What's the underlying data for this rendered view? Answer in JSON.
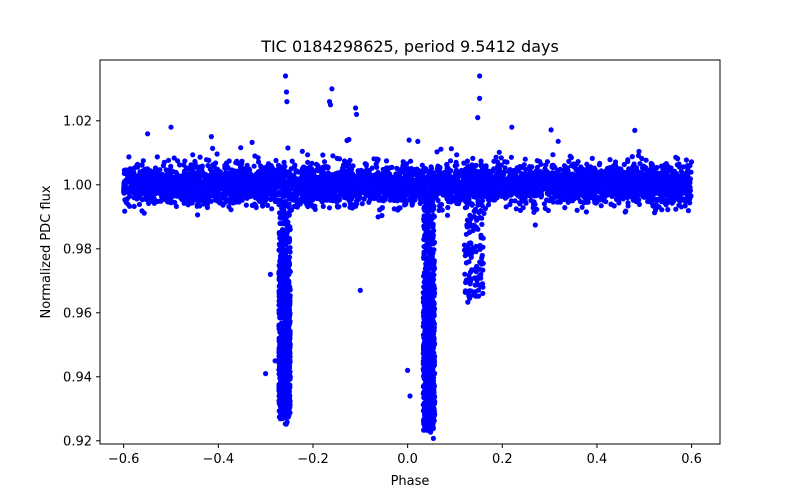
{
  "chart_data": {
    "type": "scatter",
    "title": "TIC 0184298625, period 9.5412 days",
    "xlabel": "Phase",
    "ylabel": "Normalized PDC flux",
    "xlim": [
      -0.65,
      0.66
    ],
    "ylim": [
      0.919,
      1.039
    ],
    "xticks": [
      -0.6,
      -0.4,
      -0.2,
      0.0,
      0.2,
      0.4,
      0.6
    ],
    "xtick_labels": [
      "−0.6",
      "−0.4",
      "−0.2",
      "0.0",
      "0.2",
      "0.4",
      "0.6"
    ],
    "yticks": [
      0.92,
      0.94,
      0.96,
      0.98,
      1.0,
      1.02
    ],
    "ytick_labels": [
      "0.92",
      "0.94",
      "0.96",
      "0.98",
      "1.00",
      "1.02"
    ],
    "grid": false,
    "legend": "none",
    "series": [
      {
        "color": "#0000ff",
        "marker": "circle",
        "baseline": 1.0,
        "baseline_scatter": 0.003,
        "phase_range": [
          -0.6,
          0.6
        ],
        "features": [
          {
            "kind": "eclipse",
            "center": -0.26,
            "half_width": 0.012,
            "min_flux": 0.928
          },
          {
            "kind": "eclipse",
            "center": 0.045,
            "half_width": 0.012,
            "min_flux": 0.924
          },
          {
            "kind": "dip",
            "center": 0.14,
            "half_width": 0.02,
            "min_flux": 0.965
          }
        ],
        "points": [
          {
            "x": -0.258,
            "y": 1.034
          },
          {
            "x": -0.256,
            "y": 1.029
          },
          {
            "x": -0.255,
            "y": 1.026
          },
          {
            "x": -0.16,
            "y": 1.03
          },
          {
            "x": -0.165,
            "y": 1.026
          },
          {
            "x": -0.163,
            "y": 1.025
          },
          {
            "x": -0.11,
            "y": 1.024
          },
          {
            "x": -0.108,
            "y": 1.022
          },
          {
            "x": 0.152,
            "y": 1.034
          },
          {
            "x": 0.152,
            "y": 1.027
          },
          {
            "x": 0.148,
            "y": 1.021
          },
          {
            "x": -0.5,
            "y": 1.018
          },
          {
            "x": 0.22,
            "y": 1.018
          },
          {
            "x": 0.48,
            "y": 1.017
          },
          {
            "x": -0.1,
            "y": 0.967
          },
          {
            "x": 0.13,
            "y": 0.965
          },
          {
            "x": -0.29,
            "y": 0.972
          },
          {
            "x": -0.3,
            "y": 0.941
          },
          {
            "x": -0.28,
            "y": 0.945
          },
          {
            "x": 0.0,
            "y": 0.942
          },
          {
            "x": 0.005,
            "y": 0.934
          },
          {
            "x": 0.04,
            "y": 0.924
          },
          {
            "x": -0.262,
            "y": 0.928
          },
          {
            "x": 0.046,
            "y": 0.93
          }
        ]
      }
    ]
  }
}
